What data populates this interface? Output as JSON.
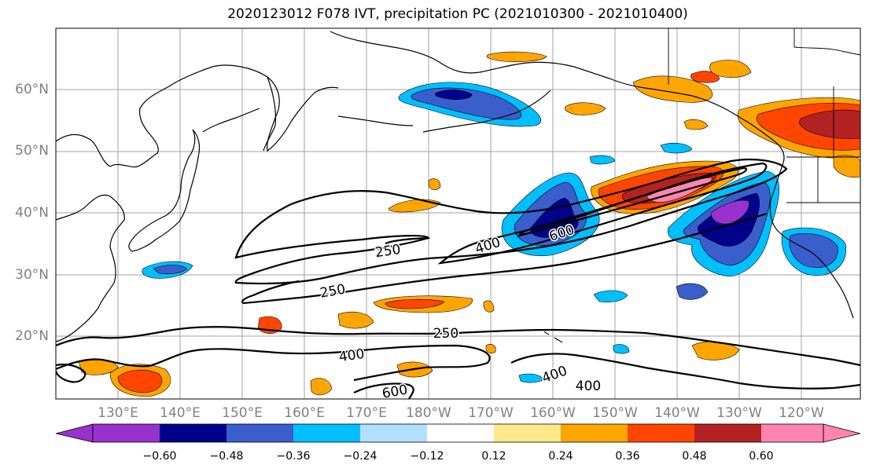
{
  "title": "2020123012 F078 IVT, precipitation PC (2021010300 - 2021010400)",
  "lat_labels": [
    "60°N",
    "50°N",
    "40°N",
    "30°N",
    "20°N"
  ],
  "lon_labels": [
    "130°E",
    "140°E",
    "150°E",
    "160°E",
    "170°E",
    "180°W",
    "170°W",
    "160°W",
    "150°W",
    "140°W",
    "130°W",
    "120°W"
  ],
  "contour_labels": [
    "400",
    "600",
    "250",
    "250",
    "250",
    "400",
    "400",
    "400",
    "600"
  ],
  "colorbar": {
    "ticks": [
      "−0.60",
      "−0.48",
      "−0.36",
      "−0.24",
      "−0.12",
      "0.12",
      "0.24",
      "0.36",
      "0.48",
      "0.60"
    ],
    "colors": [
      "#9932cc",
      "#00008b",
      "#3a5fcd",
      "#00bfff",
      "#b2dfff",
      "#ffffff",
      "#ffe88a",
      "#ffa500",
      "#ff4500",
      "#b22222",
      "#ff85b0"
    ]
  },
  "palette": {
    "contour": "#000000",
    "coast": "#000000",
    "grid": "#a0a0a0",
    "axis_text": "#808080"
  }
}
